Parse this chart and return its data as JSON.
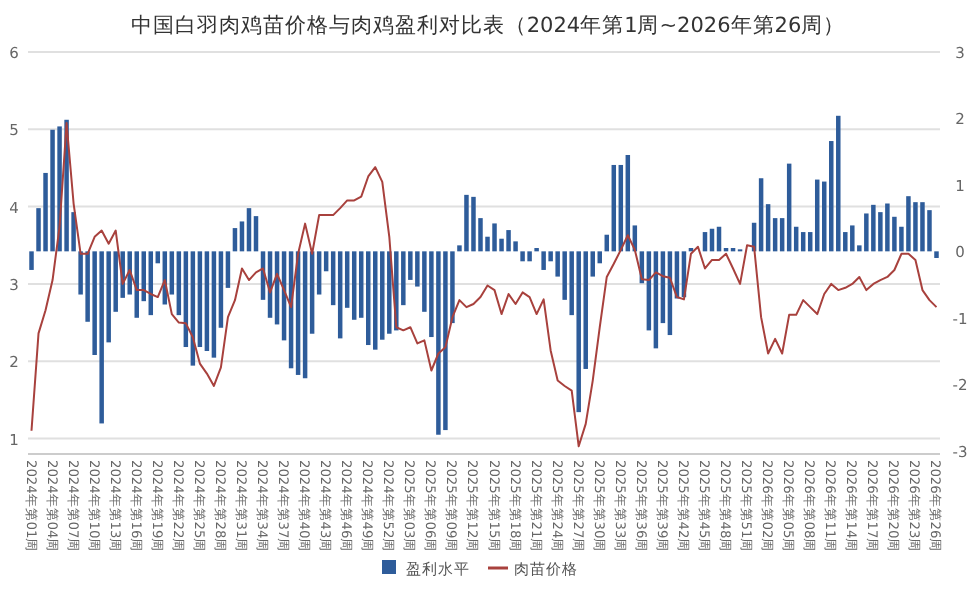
{
  "chart_data": {
    "type": "bar",
    "title": "中国白羽肉鸡苗价格与肉鸡盈利对比表（2024年第1周~2026年第26周）",
    "categories": [
      "2024年第01周",
      null,
      null,
      "2024年第04周",
      null,
      null,
      "2024年第07周",
      null,
      null,
      "2024年第10周",
      null,
      null,
      "2024年第13周",
      null,
      null,
      "2024年第16周",
      null,
      null,
      "2024年第19周",
      null,
      null,
      "2024年第22周",
      null,
      null,
      "2024年第25周",
      null,
      null,
      "2024年第28周",
      null,
      null,
      "2024年第31周",
      null,
      null,
      "2024年第34周",
      null,
      null,
      "2024年第37周",
      null,
      null,
      "2024年第40周",
      null,
      null,
      "2024年第43周",
      null,
      null,
      "2024年第46周",
      null,
      null,
      "2024年第49周",
      null,
      null,
      "2024年第52周",
      null,
      null,
      "2025年第03周",
      null,
      null,
      "2025年第06周",
      null,
      null,
      "2025年第09周",
      null,
      null,
      "2025年第12周",
      null,
      null,
      "2025年第15周",
      null,
      null,
      "2025年第18周",
      null,
      null,
      "2025年第21周",
      null,
      null,
      "2025年第24周",
      null,
      null,
      "2025年第27周",
      null,
      null,
      "2025年第30周",
      null,
      null,
      "2025年第33周",
      null,
      null,
      "2025年第36周",
      null,
      null,
      "2025年第39周",
      null,
      null,
      "2025年第42周",
      null,
      null,
      "2025年第45周",
      null,
      null,
      "2025年第48周",
      null,
      null,
      "2025年第51周",
      null,
      null,
      "2026年第02周",
      null,
      null,
      "2026年第05周",
      null,
      null,
      "2026年第08周",
      null,
      null,
      "2026年第11周",
      null,
      null,
      "2026年第14周",
      null,
      null,
      "2026年第17周",
      null,
      null,
      "2026年第20周",
      null,
      null,
      "2026年第23周",
      null,
      null,
      "2026年第26周"
    ],
    "series": [
      {
        "name": "盈利水平",
        "axis": "y2",
        "color": "#2e5c9a",
        "values": [
          -0.28,
          0.65,
          1.18,
          1.83,
          1.88,
          1.98,
          0.59,
          -0.65,
          -1.06,
          -1.56,
          -2.59,
          -1.37,
          -0.91,
          -0.7,
          -0.65,
          -1.0,
          -0.75,
          -0.96,
          -0.18,
          -0.8,
          -0.65,
          -0.96,
          -1.44,
          -1.72,
          -1.44,
          -1.5,
          -1.6,
          -1.15,
          -0.55,
          0.35,
          0.45,
          0.65,
          0.53,
          -0.73,
          -1.0,
          -1.1,
          -1.34,
          -1.76,
          -1.86,
          -1.91,
          -1.24,
          -0.65,
          -0.3,
          -0.81,
          -1.31,
          -0.85,
          -1.03,
          -1.0,
          -1.41,
          -1.48,
          -1.33,
          -1.24,
          -1.19,
          -0.81,
          -0.43,
          -0.53,
          -0.91,
          -1.29,
          -2.76,
          -2.69,
          -1.08,
          0.09,
          0.85,
          0.82,
          0.5,
          0.22,
          0.42,
          0.19,
          0.32,
          0.15,
          -0.15,
          -0.15,
          0.05,
          -0.28,
          -0.15,
          -0.38,
          -0.73,
          -0.96,
          -2.42,
          -1.77,
          -0.38,
          -0.18,
          0.25,
          1.3,
          1.3,
          1.45,
          0.39,
          -0.48,
          -1.19,
          -1.46,
          -1.08,
          -1.26,
          -0.71,
          -0.69,
          0.05,
          null,
          0.29,
          0.34,
          0.37,
          0.05,
          0.05,
          0.03,
          null,
          0.43,
          1.1,
          0.71,
          0.5,
          0.5,
          1.32,
          0.37,
          0.29,
          0.29,
          1.08,
          1.05,
          1.66,
          2.04,
          0.29,
          0.39,
          0.09,
          0.57,
          0.7,
          0.59,
          0.72,
          0.52,
          0.37,
          0.83,
          0.74,
          0.74,
          0.62,
          -0.1
        ]
      },
      {
        "name": "肉苗价格",
        "type": "line",
        "color": "#a8413d",
        "values": [
          1.1,
          2.36,
          2.66,
          3.05,
          3.74,
          5.08,
          4.04,
          3.39,
          3.39,
          3.61,
          3.69,
          3.52,
          3.69,
          3.0,
          3.18,
          2.92,
          2.92,
          2.87,
          2.83,
          3.05,
          2.61,
          2.5,
          2.49,
          2.31,
          1.97,
          1.84,
          1.68,
          1.92,
          2.57,
          2.79,
          3.2,
          3.05,
          3.15,
          3.2,
          2.89,
          3.13,
          2.92,
          2.7,
          3.39,
          3.78,
          3.39,
          3.89,
          3.89,
          3.89,
          3.98,
          4.08,
          4.08,
          4.13,
          4.39,
          4.51,
          4.32,
          3.61,
          2.44,
          2.4,
          2.44,
          2.23,
          2.27,
          1.88,
          2.1,
          2.18,
          2.57,
          2.79,
          2.7,
          2.74,
          2.83,
          2.98,
          2.92,
          2.61,
          2.87,
          2.74,
          2.89,
          2.83,
          2.61,
          2.8,
          2.14,
          1.75,
          1.68,
          1.62,
          0.9,
          1.19,
          1.75,
          2.44,
          3.09,
          3.26,
          3.44,
          3.63,
          3.44,
          3.06,
          3.05,
          3.15,
          3.1,
          3.08,
          2.83,
          2.8,
          3.39,
          3.48,
          3.2,
          3.31,
          3.31,
          3.39,
          3.2,
          3.0,
          3.5,
          3.48,
          2.57,
          2.1,
          2.29,
          2.1,
          2.6,
          2.6,
          2.79,
          2.7,
          2.61,
          2.87,
          3.0,
          2.92,
          2.95,
          3.0,
          3.09,
          2.92,
          3.0,
          3.05,
          3.09,
          3.18,
          3.39,
          3.39,
          3.31,
          2.92,
          2.79,
          2.7
        ]
      }
    ],
    "ylim": [
      0.8,
      6
    ],
    "yticks": [
      1,
      2,
      3,
      4,
      5,
      6
    ],
    "y2lim": [
      -3.05,
      3
    ],
    "y2ticks": [
      -3,
      -2,
      -1,
      0,
      1,
      2,
      3
    ],
    "grid": "y",
    "legend": "bottom"
  }
}
